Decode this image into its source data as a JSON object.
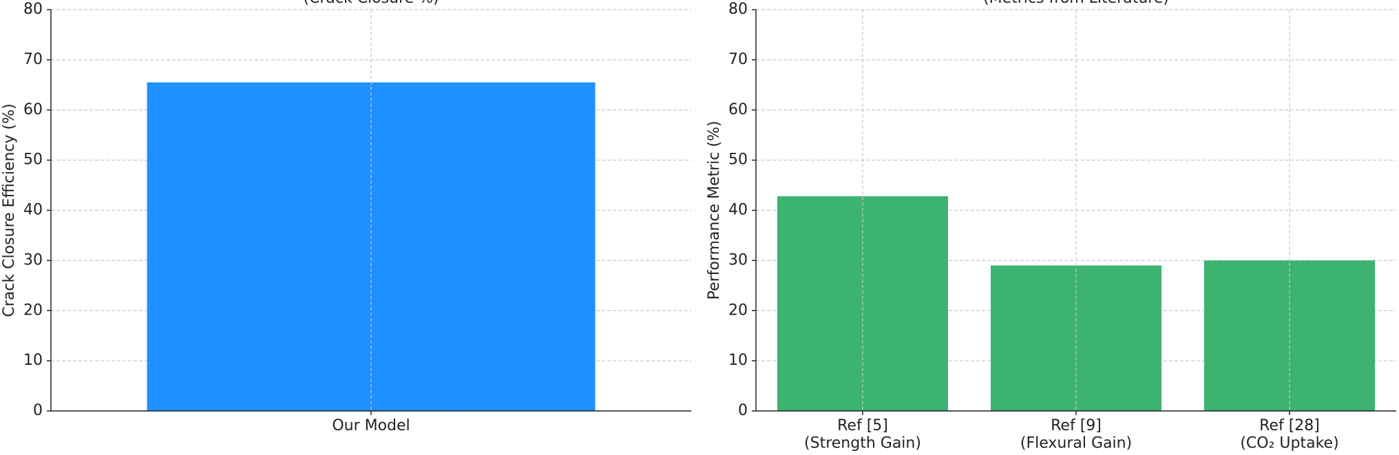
{
  "chart_data": [
    {
      "type": "bar",
      "title": "(Crack Closure %)",
      "ylabel": "Crack Closure Efficiency (%)",
      "categories": [
        "Our Model"
      ],
      "values": [
        65.5
      ],
      "color": "#1e90ff",
      "ylim": [
        0,
        80
      ],
      "yticks": [
        0,
        10,
        20,
        30,
        40,
        50,
        60,
        70,
        80
      ],
      "grid": true
    },
    {
      "type": "bar",
      "title": "(Metrics from Literature)",
      "ylabel": "Performance Metric (%)",
      "categories": [
        "Ref [5]\n(Strength Gain)",
        "Ref [9]\n(Flexural Gain)",
        "Ref [28]\n(CO₂ Uptake)"
      ],
      "values": [
        42.8,
        29,
        30
      ],
      "color": "#3cb371",
      "ylim": [
        0,
        80
      ],
      "yticks": [
        0,
        10,
        20,
        30,
        40,
        50,
        60,
        70,
        80
      ],
      "grid": true
    }
  ]
}
